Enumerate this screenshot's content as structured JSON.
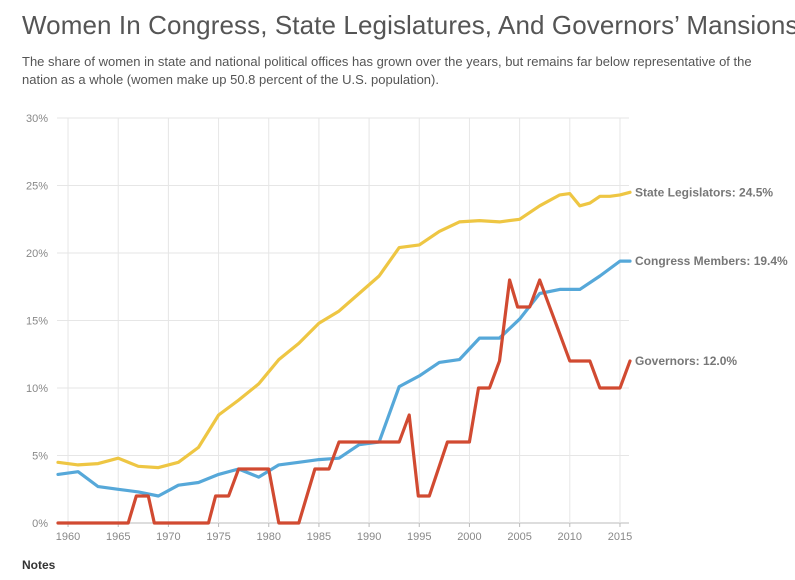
{
  "header": {
    "title": "Women In Congress, State Legislatures, And Governors’ Mansions",
    "subtitle": "The share of women in state and national political offices has grown over the years, but remains far below representative of the nation as a whole (women make up 50.8 percent of the U.S. population)."
  },
  "footer": {
    "notes_label": "Notes"
  },
  "chart_data": {
    "type": "line",
    "title": "Women In Congress, State Legislatures, And Governors’ Mansions",
    "xlabel": "",
    "ylabel": "",
    "xlim": [
      1958.9,
      2015.9
    ],
    "ylim": [
      0,
      30
    ],
    "x_ticks": [
      1960,
      1965,
      1970,
      1975,
      1980,
      1985,
      1990,
      1995,
      2000,
      2005,
      2010,
      2015
    ],
    "x_tick_labels": [
      "1960",
      "1965",
      "1970",
      "1975",
      "1980",
      "1985",
      "1990",
      "1995",
      "2000",
      "2005",
      "2010",
      "2015"
    ],
    "y_ticks": [
      0,
      5,
      10,
      15,
      20,
      25,
      30
    ],
    "y_tick_labels": [
      "0%",
      "5%",
      "10%",
      "15%",
      "20%",
      "25%",
      "30%"
    ],
    "grid": true,
    "series": [
      {
        "name": "State Legislators",
        "end_label": "State Legislators: 24.5%",
        "color": "#eec643",
        "points": [
          [
            1959,
            4.5
          ],
          [
            1961,
            4.3
          ],
          [
            1963,
            4.4
          ],
          [
            1965,
            4.8
          ],
          [
            1967,
            4.2
          ],
          [
            1969,
            4.1
          ],
          [
            1971,
            4.5
          ],
          [
            1973,
            5.6
          ],
          [
            1975,
            8.0
          ],
          [
            1977,
            9.1
          ],
          [
            1979,
            10.3
          ],
          [
            1981,
            12.1
          ],
          [
            1983,
            13.3
          ],
          [
            1985,
            14.8
          ],
          [
            1987,
            15.7
          ],
          [
            1989,
            17.0
          ],
          [
            1991,
            18.3
          ],
          [
            1993,
            20.4
          ],
          [
            1995,
            20.6
          ],
          [
            1997,
            21.6
          ],
          [
            1999,
            22.3
          ],
          [
            2001,
            22.4
          ],
          [
            2003,
            22.3
          ],
          [
            2005,
            22.5
          ],
          [
            2007,
            23.5
          ],
          [
            2009,
            24.3
          ],
          [
            2010,
            24.4
          ],
          [
            2011,
            23.5
          ],
          [
            2012,
            23.7
          ],
          [
            2013,
            24.2
          ],
          [
            2014,
            24.2
          ],
          [
            2015,
            24.3
          ],
          [
            2016,
            24.5
          ]
        ]
      },
      {
        "name": "Congress Members",
        "end_label": "Congress Members: 19.4%",
        "color": "#56a8d9",
        "points": [
          [
            1959,
            3.6
          ],
          [
            1961,
            3.8
          ],
          [
            1963,
            2.7
          ],
          [
            1965,
            2.5
          ],
          [
            1967,
            2.3
          ],
          [
            1969,
            2.0
          ],
          [
            1971,
            2.8
          ],
          [
            1973,
            3.0
          ],
          [
            1975,
            3.6
          ],
          [
            1977,
            4.0
          ],
          [
            1979,
            3.4
          ],
          [
            1981,
            4.3
          ],
          [
            1983,
            4.5
          ],
          [
            1985,
            4.7
          ],
          [
            1987,
            4.8
          ],
          [
            1989,
            5.8
          ],
          [
            1991,
            6.0
          ],
          [
            1993,
            10.1
          ],
          [
            1995,
            10.9
          ],
          [
            1997,
            11.9
          ],
          [
            1999,
            12.1
          ],
          [
            2001,
            13.7
          ],
          [
            2003,
            13.7
          ],
          [
            2005,
            15.1
          ],
          [
            2007,
            17.0
          ],
          [
            2009,
            17.3
          ],
          [
            2011,
            17.3
          ],
          [
            2013,
            18.3
          ],
          [
            2015,
            19.4
          ],
          [
            2016,
            19.4
          ]
        ]
      },
      {
        "name": "Governors",
        "end_label": "Governors: 12.0%",
        "color": "#d14a31",
        "points": [
          [
            1959,
            0
          ],
          [
            1966,
            0
          ],
          [
            1966.8,
            2
          ],
          [
            1968,
            2
          ],
          [
            1968.6,
            0
          ],
          [
            1974,
            0
          ],
          [
            1974.7,
            2
          ],
          [
            1976,
            2
          ],
          [
            1977,
            4
          ],
          [
            1980,
            4
          ],
          [
            1981,
            0
          ],
          [
            1983,
            0
          ],
          [
            1984.6,
            4
          ],
          [
            1986,
            4
          ],
          [
            1987,
            6
          ],
          [
            1993,
            6
          ],
          [
            1994,
            8
          ],
          [
            1994.9,
            2
          ],
          [
            1996,
            2
          ],
          [
            1997.8,
            6
          ],
          [
            2000,
            6
          ],
          [
            2000.9,
            10
          ],
          [
            2002,
            10
          ],
          [
            2003,
            12
          ],
          [
            2004,
            18
          ],
          [
            2004.8,
            16
          ],
          [
            2006,
            16
          ],
          [
            2007,
            18
          ],
          [
            2008,
            16
          ],
          [
            2009,
            14
          ],
          [
            2010,
            12
          ],
          [
            2012,
            12
          ],
          [
            2013,
            10
          ],
          [
            2015,
            10
          ],
          [
            2016,
            12
          ]
        ]
      }
    ]
  }
}
